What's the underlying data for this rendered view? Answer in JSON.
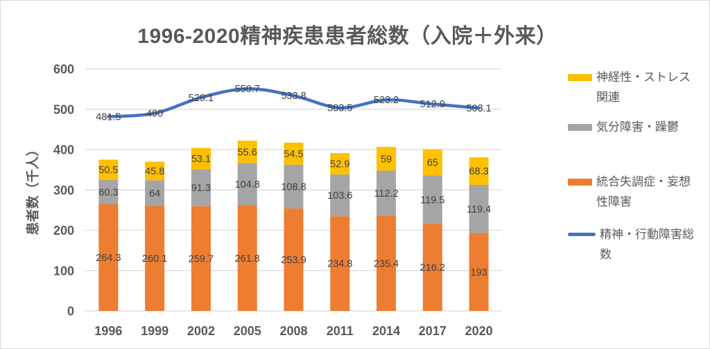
{
  "title": "1996-2020精神疾患患者総数（入院＋外来）",
  "y_axis_title": "患者数（千人）",
  "legend": {
    "position": "right",
    "items": [
      {
        "label": "神経性・ストレス関連",
        "color": "#FFC000",
        "marker": "bar"
      },
      {
        "label": "気分障害・躁鬱",
        "color": "#A5A5A5",
        "marker": "bar"
      },
      {
        "label": "統合失調症・妄想性障害",
        "color": "#ED7D31",
        "marker": "bar"
      },
      {
        "label": "精神・行動障害総数",
        "color": "#4472C4",
        "marker": "line"
      }
    ]
  },
  "chart_data": {
    "type": "combo-stacked-bar-line",
    "title": "1996-2020精神疾患患者総数（入院＋外来）",
    "xlabel": "",
    "ylabel": "患者数（千人）",
    "ylim": [
      0,
      600
    ],
    "ytick_interval": 100,
    "yticks": [
      0,
      100,
      200,
      300,
      400,
      500,
      600
    ],
    "grid": true,
    "legend_position": "right",
    "data_labels": true,
    "categories": [
      "1996",
      "1999",
      "2002",
      "2005",
      "2008",
      "2011",
      "2014",
      "2017",
      "2020"
    ],
    "series": [
      {
        "name": "統合失調症・妄想性障害",
        "type": "bar",
        "stack": true,
        "color": "#ED7D31",
        "values": [
          264.3,
          260.1,
          259.7,
          261.8,
          253.9,
          234.8,
          235.4,
          216.2,
          193
        ]
      },
      {
        "name": "気分障害・躁鬱",
        "type": "bar",
        "stack": true,
        "color": "#A5A5A5",
        "values": [
          60.3,
          64,
          91.3,
          104.8,
          108.8,
          103.6,
          112.2,
          119.5,
          119.4
        ]
      },
      {
        "name": "神経性・ストレス関連",
        "type": "bar",
        "stack": true,
        "color": "#FFC000",
        "values": [
          50.5,
          45.8,
          53.1,
          55.6,
          54.5,
          52.9,
          59,
          65,
          68.3
        ]
      },
      {
        "name": "精神・行動障害総数",
        "type": "line",
        "smooth": true,
        "color": "#4472C4",
        "values": [
          481.5,
          490,
          529.1,
          550.7,
          533.8,
          503.5,
          523.2,
          512.9,
          503.1
        ]
      }
    ]
  },
  "colors": {
    "accent_blue": "#4472C4",
    "accent_orange": "#ED7D31",
    "accent_gray": "#A5A5A5",
    "accent_gold": "#FFC000",
    "gridline": "#D9D9D9",
    "axis_text": "#595959",
    "label_text": "#404040",
    "border": "#D9D9D9"
  }
}
